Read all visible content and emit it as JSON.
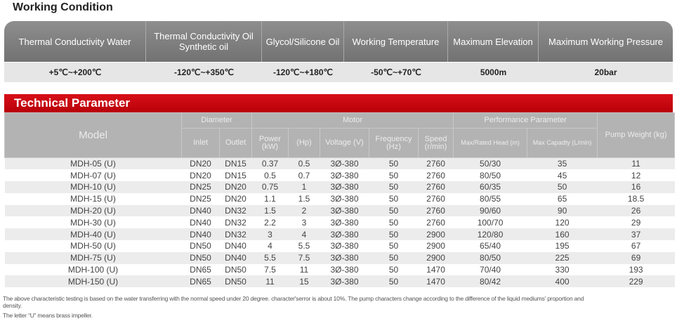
{
  "working_condition": {
    "title": "Working Condition",
    "headers": [
      "Thermal Conductivity Water",
      "Thermal Conductivity Oil Synthetic oil",
      "Glycol/Silicone Oil",
      "Working Temperature",
      "Maximum Elevation",
      "Maximum Working Pressure"
    ],
    "values": [
      "+5℃~+200℃",
      "-120℃~+350℃",
      "-120℃~+180℃",
      "-50℃~+70℃",
      "5000m",
      "20bar"
    ]
  },
  "technical": {
    "title": "Technical Parameter",
    "group_headers": {
      "model": "Model",
      "diameter": "Diameter",
      "motor": "Motor",
      "performance": "Performance Parameter",
      "weight": "Pump Weight (kg)"
    },
    "sub_headers": [
      "Inlet",
      "Outlet",
      "Power (kW)",
      "(Hp)",
      "Voltage (V)",
      "Frequency (Hz)",
      "Speed (r/min)",
      "Max/Rated Head (m)",
      "Max Capadty (L/min)"
    ],
    "rows": [
      [
        "MDH-05 (U)",
        "DN20",
        "DN15",
        "0.37",
        "0.5",
        "3Ø-380",
        "50",
        "2760",
        "50/30",
        "35",
        "11"
      ],
      [
        "MDH-07 (U)",
        "DN20",
        "DN15",
        "0.5",
        "0.7",
        "3Ø-380",
        "50",
        "2760",
        "80/50",
        "45",
        "12"
      ],
      [
        "MDH-10 (U)",
        "DN25",
        "DN20",
        "0.75",
        "1",
        "3Ø-380",
        "50",
        "2760",
        "60/35",
        "50",
        "16"
      ],
      [
        "MDH-15 (U)",
        "DN25",
        "DN20",
        "1.1",
        "1.5",
        "3Ø-380",
        "50",
        "2760",
        "80/55",
        "65",
        "18.5"
      ],
      [
        "MDH-20 (U)",
        "DN40",
        "DN32",
        "1.5",
        "2",
        "3Ø-380",
        "50",
        "2760",
        "90/60",
        "90",
        "26"
      ],
      [
        "MDH-30 (U)",
        "DN40",
        "DN32",
        "2.2",
        "3",
        "3Ø-380",
        "50",
        "2760",
        "100/70",
        "120",
        "29"
      ],
      [
        "MDH-40 (U)",
        "DN40",
        "DN32",
        "3",
        "4",
        "3Ø-380",
        "50",
        "2900",
        "120/80",
        "160",
        "37"
      ],
      [
        "MDH-50 (U)",
        "DN50",
        "DN40",
        "4",
        "5.5",
        "3Ø-380",
        "50",
        "2900",
        "65/40",
        "195",
        "67"
      ],
      [
        "MDH-75 (U)",
        "DN50",
        "DN40",
        "5.5",
        "7.5",
        "3Ø-380",
        "50",
        "2900",
        "80/50",
        "225",
        "69"
      ],
      [
        "MDH-100 (U)",
        "DN65",
        "DN50",
        "7.5",
        "11",
        "3Ø-380",
        "50",
        "1470",
        "70/40",
        "330",
        "193"
      ],
      [
        "MDH-150 (U)",
        "DN65",
        "DN50",
        "11",
        "15",
        "3Ø-380",
        "50",
        "1470",
        "80/42",
        "400",
        "229"
      ]
    ]
  },
  "notes": [
    "The above characteristic testing is based on the water transferring with the normal speed under 20 degree.  character'serror is about 10%. The pump characters change according to the difference of the liquid mediums’  proportion and density.",
    "The letter “U” means brass impeller."
  ]
}
